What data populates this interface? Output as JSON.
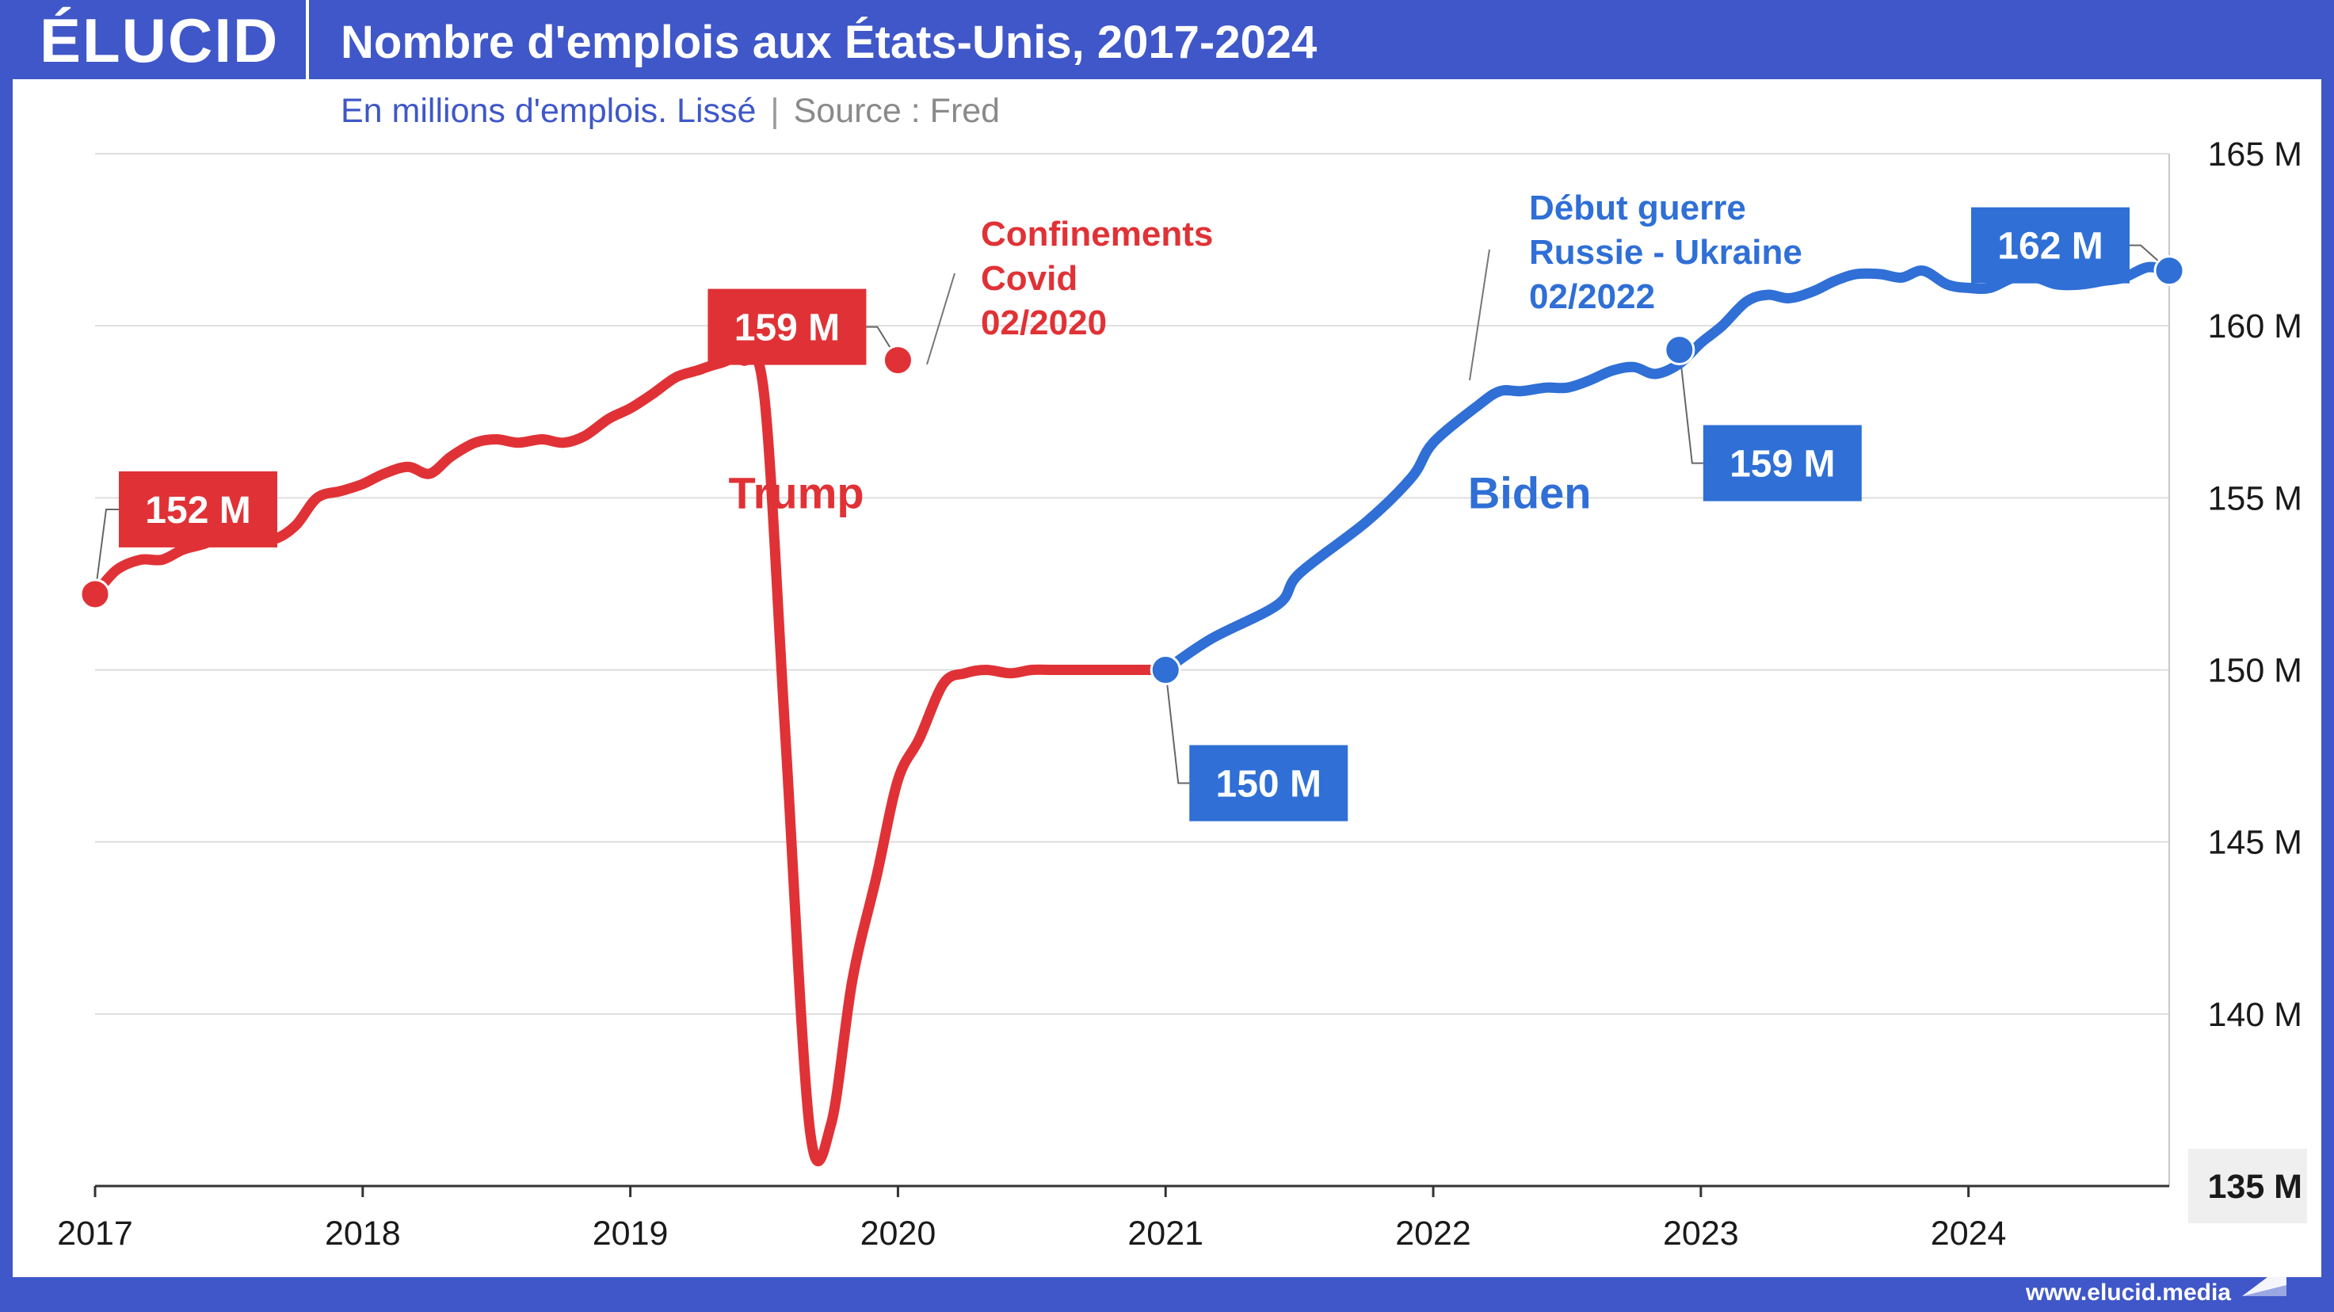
{
  "header": {
    "logo": "ÉLUCID",
    "title": "Nombre d'emplois aux États-Unis, 2017-2024",
    "subtitle": "En millions d'emplois. Lissé",
    "separator": "|",
    "source": "Source : Fred"
  },
  "footer": {
    "url": "www.elucid.media"
  },
  "colors": {
    "trump": "#e03236",
    "biden": "#2f6fd6",
    "brand": "#3f57c8"
  },
  "chart_data": {
    "type": "line",
    "title": "Nombre d'emplois aux États-Unis, 2017-2024",
    "ylabel": "En millions d'emplois",
    "ylim": [
      135,
      165
    ],
    "yticks": [
      165,
      160,
      155,
      150,
      145,
      140,
      135
    ],
    "ytick_labels": [
      "165 M",
      "160 M",
      "155 M",
      "150 M",
      "145 M",
      "140 M",
      "135 M"
    ],
    "xlim": [
      2017,
      2024.75
    ],
    "xticks": [
      2017,
      2018,
      2019,
      2020,
      2021,
      2022,
      2023,
      2024
    ],
    "xtick_labels": [
      "2017",
      "2018",
      "2019",
      "2020",
      "2021",
      "2022",
      "2023",
      "2024"
    ],
    "y_axis_position": "right",
    "grid": "horizontal",
    "series": [
      {
        "name": "Trump",
        "color": "#e03236",
        "x": [
          2017.0,
          2017.08,
          2017.17,
          2017.25,
          2017.33,
          2017.42,
          2017.5,
          2017.58,
          2017.67,
          2017.75,
          2017.83,
          2017.92,
          2018.0,
          2018.08,
          2018.17,
          2018.25,
          2018.33,
          2018.42,
          2018.5,
          2018.58,
          2018.67,
          2018.75,
          2018.83,
          2018.92,
          2019.0,
          2019.08,
          2019.17,
          2019.25,
          2019.33,
          2019.42,
          2019.5,
          2019.58,
          2019.67,
          2019.75,
          2019.83,
          2019.92,
          2020.0,
          2020.08,
          2020.17,
          2020.25,
          2020.33,
          2020.42,
          2020.5,
          2020.58,
          2020.67,
          2020.75,
          2020.83,
          2020.92,
          2021.0
        ],
        "values": [
          152.2,
          152.9,
          153.2,
          153.2,
          153.5,
          153.7,
          154.1,
          153.8,
          153.8,
          154.2,
          155.0,
          155.2,
          155.4,
          155.7,
          155.9,
          155.7,
          156.2,
          156.6,
          156.7,
          156.6,
          156.7,
          156.6,
          156.8,
          157.3,
          157.6,
          158.0,
          158.5,
          158.7,
          158.9,
          159.0,
          158.0,
          148.0,
          136.7,
          136.8,
          141.0,
          144.0,
          146.8,
          148.0,
          149.6,
          149.9,
          150.0,
          149.9,
          150.0,
          150.0,
          150.0,
          150.0,
          150.0,
          150.0,
          150.0
        ]
      },
      {
        "name": "Biden",
        "color": "#2f6fd6",
        "x": [
          2021.0,
          2021.17,
          2021.42,
          2021.5,
          2021.75,
          2021.92,
          2022.0,
          2022.17,
          2022.25,
          2022.33,
          2022.42,
          2022.5,
          2022.58,
          2022.67,
          2022.75,
          2022.83,
          2022.92,
          2023.0,
          2023.08,
          2023.17,
          2023.25,
          2023.33,
          2023.42,
          2023.5,
          2023.58,
          2023.67,
          2023.75,
          2023.83,
          2023.92,
          2024.0,
          2024.08,
          2024.17,
          2024.25,
          2024.33,
          2024.42,
          2024.5,
          2024.58,
          2024.67,
          2024.75
        ],
        "values": [
          150.0,
          150.9,
          151.9,
          152.8,
          154.3,
          155.6,
          156.6,
          157.7,
          158.1,
          158.1,
          158.2,
          158.2,
          158.4,
          158.7,
          158.8,
          158.6,
          158.9,
          159.5,
          160.0,
          160.7,
          160.9,
          160.8,
          161.0,
          161.3,
          161.5,
          161.5,
          161.4,
          161.6,
          161.2,
          161.1,
          161.1,
          161.4,
          161.4,
          161.2,
          161.2,
          161.3,
          161.4,
          161.7,
          161.6
        ]
      }
    ],
    "period_labels": [
      {
        "text": "Trump",
        "series": "Trump"
      },
      {
        "text": "Biden",
        "series": "Biden"
      }
    ],
    "value_labels": [
      {
        "text": "152 M",
        "x": 2017.0,
        "y": 152.2,
        "series": "Trump"
      },
      {
        "text": "159 M",
        "x": 2020.0,
        "y": 159.0,
        "series": "Trump"
      },
      {
        "text": "150 M",
        "x": 2021.0,
        "y": 150.0,
        "series": "Biden"
      },
      {
        "text": "159 M",
        "x": 2022.92,
        "y": 159.3,
        "series": "Biden"
      },
      {
        "text": "162 M",
        "x": 2024.75,
        "y": 161.6,
        "series": "Biden"
      }
    ],
    "annotations": [
      {
        "lines": [
          "Confinements",
          "Covid",
          "02/2020"
        ],
        "x": 2020.1,
        "y": 159.0,
        "color": "#e03236"
      },
      {
        "lines": [
          "Début guerre",
          "Russie - Ukraine",
          "02/2022"
        ],
        "x": 2022.15,
        "y": 158.2,
        "color": "#2f6fd6"
      }
    ]
  }
}
